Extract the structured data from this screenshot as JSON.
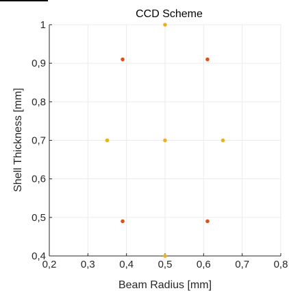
{
  "chart_data": {
    "type": "scatter",
    "title": "CCD Scheme",
    "xlabel": "Beam Radius [mm]",
    "ylabel": "Shell Thickness [mm]",
    "xlim": [
      0.2,
      0.8
    ],
    "ylim": [
      0.4,
      1.0
    ],
    "xticks": [
      "0,2",
      "0,3",
      "0,4",
      "0,5",
      "0,6",
      "0,7",
      "0,8"
    ],
    "yticks": [
      "0,4",
      "0,5",
      "0,6",
      "0,7",
      "0,8",
      "0,9",
      "1"
    ],
    "grid": true,
    "series": [
      {
        "color": "#d95319",
        "points": [
          {
            "x": 0.39,
            "y": 0.91
          },
          {
            "x": 0.61,
            "y": 0.91
          },
          {
            "x": 0.39,
            "y": 0.49
          },
          {
            "x": 0.61,
            "y": 0.49
          }
        ]
      },
      {
        "color": "#edb120",
        "points": [
          {
            "x": 0.5,
            "y": 1.0
          },
          {
            "x": 0.35,
            "y": 0.7
          },
          {
            "x": 0.5,
            "y": 0.7
          },
          {
            "x": 0.65,
            "y": 0.7
          },
          {
            "x": 0.5,
            "y": 0.4
          }
        ]
      }
    ]
  }
}
